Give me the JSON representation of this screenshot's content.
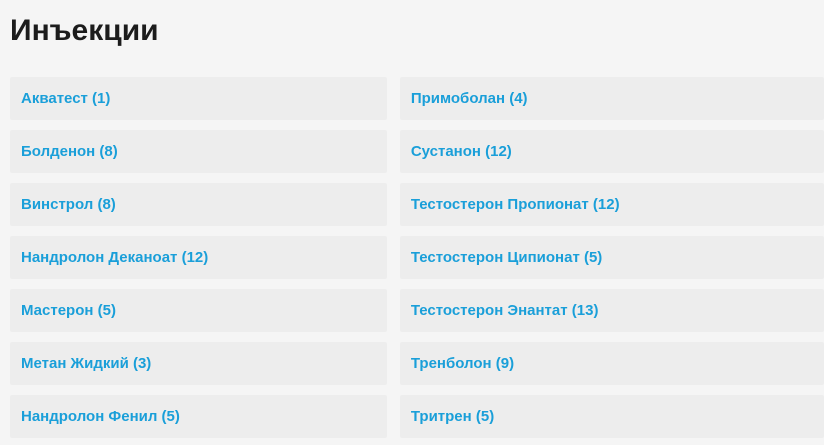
{
  "page": {
    "title": "Инъекции",
    "language": "ru"
  },
  "colors": {
    "page_background": "#f5f5f5",
    "row_background": "#ededed",
    "link": "#1a9fd9",
    "heading": "#1c1c1c"
  },
  "columns": {
    "left": {
      "items": [
        {
          "label": "Акватест (1)",
          "name": "Акватест",
          "count": 1
        },
        {
          "label": "Болденон (8)",
          "name": "Болденон",
          "count": 8
        },
        {
          "label": "Винстрол (8)",
          "name": "Винстрол",
          "count": 8
        },
        {
          "label": "Нандролон Деканоат (12)",
          "name": "Нандролон Деканоат",
          "count": 12
        },
        {
          "label": "Мастерон (5)",
          "name": "Мастерон",
          "count": 5
        },
        {
          "label": "Метан Жидкий (3)",
          "name": "Метан Жидкий",
          "count": 3
        },
        {
          "label": "Нандролон Фенил (5)",
          "name": "Нандролон Фенил",
          "count": 5
        }
      ]
    },
    "right": {
      "items": [
        {
          "label": "Примоболан (4)",
          "name": "Примоболан",
          "count": 4
        },
        {
          "label": "Сустанон (12)",
          "name": "Сустанон",
          "count": 12
        },
        {
          "label": "Тестостерон Пропионат (12)",
          "name": "Тестостерон Пропионат",
          "count": 12
        },
        {
          "label": "Тестостерон Ципионат (5)",
          "name": "Тестостерон Ципионат",
          "count": 5
        },
        {
          "label": "Тестостерон Энантат (13)",
          "name": "Тестостерон Энантат",
          "count": 13
        },
        {
          "label": "Тренболон (9)",
          "name": "Тренболон",
          "count": 9
        },
        {
          "label": "Тритрен (5)",
          "name": "Тритрен",
          "count": 5
        }
      ]
    }
  }
}
